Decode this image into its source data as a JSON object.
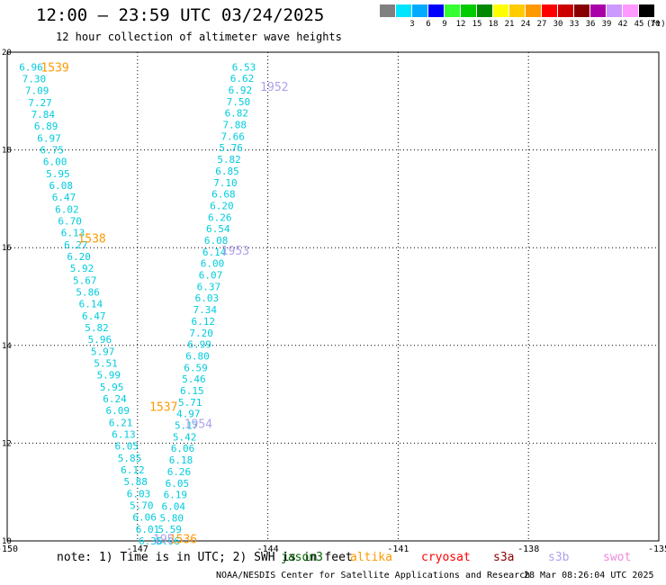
{
  "header": {
    "title": "12:00 — 23:59 UTC 03/24/2025",
    "subtitle": "12 hour collection of altimeter wave heights"
  },
  "colorscale": {
    "unit": "(ft)",
    "steps": [
      {
        "label": "",
        "color": "#808080"
      },
      {
        "label": "3",
        "color": "#00e5ff"
      },
      {
        "label": "6",
        "color": "#00aaff"
      },
      {
        "label": "9",
        "color": "#0000ff"
      },
      {
        "label": "12",
        "color": "#33ff33"
      },
      {
        "label": "15",
        "color": "#00cc00"
      },
      {
        "label": "18",
        "color": "#008800"
      },
      {
        "label": "21",
        "color": "#ffff00"
      },
      {
        "label": "24",
        "color": "#ffcc00"
      },
      {
        "label": "27",
        "color": "#ff9900"
      },
      {
        "label": "30",
        "color": "#ff0000"
      },
      {
        "label": "33",
        "color": "#cc0000"
      },
      {
        "label": "36",
        "color": "#880000"
      },
      {
        "label": "39",
        "color": "#aa00aa"
      },
      {
        "label": "42",
        "color": "#cc99ff"
      },
      {
        "label": "45",
        "color": "#ff99ff"
      },
      {
        "label": "70",
        "color": "#000000"
      }
    ]
  },
  "map": {
    "lon_ticks": [
      "-150",
      "-147",
      "-144",
      "-141",
      "-138",
      "-135"
    ],
    "lat_ticks": [
      "10",
      "12",
      "14",
      "16",
      "18",
      "20"
    ],
    "lon_range": [
      -150,
      -135
    ],
    "lat_range": [
      10,
      20
    ],
    "track_color": "#00ccdd",
    "tracks": [
      {
        "lon_start": -149.45,
        "lon_end": -146.7,
        "lat_start": 19.7,
        "lat_end": 10.0,
        "values": [
          "6.96",
          "7.30",
          "7.09",
          "7.27",
          "7.84",
          "6.89",
          "6.97",
          "6.75",
          "6.00",
          "5.95",
          "6.08",
          "6.47",
          "6.02",
          "6.70",
          "6.13",
          "6.27",
          "6.20",
          "5.92",
          "5.67",
          "5.86",
          "6.14",
          "6.47",
          "5.82",
          "5.96",
          "5.97",
          "5.51",
          "5.99",
          "5.95",
          "6.24",
          "6.09",
          "6.21",
          "6.13",
          "6.05",
          "5.85",
          "6.12",
          "5.88",
          "6.03",
          "5.70",
          "6.06",
          "6.01",
          "6.36"
        ]
      },
      {
        "lon_start": -144.55,
        "lon_end": -146.3,
        "lat_start": 19.7,
        "lat_end": 10.0,
        "values": [
          "6.53",
          "6.62",
          "6.92",
          "7.50",
          "6.82",
          "7.88",
          "7.66",
          "5.76",
          "5.82",
          "6.85",
          "7.10",
          "6.68",
          "6.20",
          "6.26",
          "6.54",
          "6.08",
          "6.14",
          "6.00",
          "6.07",
          "6.37",
          "6.03",
          "7.34",
          "6.12",
          "7.20",
          "6.99",
          "6.80",
          "6.59",
          "5.46",
          "6.15",
          "5.71",
          "4.97",
          "5.17",
          "5.42",
          "6.06",
          "6.18",
          "6.26",
          "6.05",
          "6.19",
          "6.04",
          "5.80",
          "5.59",
          "5.96"
        ]
      }
    ],
    "time_labels": [
      {
        "text": "1539",
        "lon": -148.9,
        "lat": 19.7,
        "color": "#ff9900"
      },
      {
        "text": "1538",
        "lon": -148.05,
        "lat": 16.2,
        "color": "#ff9900"
      },
      {
        "text": "1537",
        "lon": -146.4,
        "lat": 12.75,
        "color": "#ff9900"
      },
      {
        "text": "1536",
        "lon": -145.95,
        "lat": 10.05,
        "color": "#ff9900"
      },
      {
        "text": "1952",
        "lon": -143.85,
        "lat": 19.3,
        "color": "#b0a0ee"
      },
      {
        "text": "1953",
        "lon": -144.75,
        "lat": 15.95,
        "color": "#b0a0ee"
      },
      {
        "text": "1954",
        "lon": -145.6,
        "lat": 12.4,
        "color": "#b0a0ee"
      },
      {
        "text": "195",
        "lon": -146.4,
        "lat": 10.05,
        "color": "#b0a0ee"
      }
    ]
  },
  "note": "note: 1) Time is in UTC; 2) SWH is in feet",
  "legend": [
    {
      "label": "jason3",
      "color": "#006600"
    },
    {
      "label": "altika",
      "color": "#ff9900"
    },
    {
      "label": "cryosat",
      "color": "#ff0000"
    },
    {
      "label": "s3a",
      "color": "#880000"
    },
    {
      "label": "s3b",
      "color": "#b0a0ee"
    },
    {
      "label": "swot",
      "color": "#ee88dd"
    }
  ],
  "footer": {
    "credit": "NOAA/NESDIS Center for Satellite Applications and Research",
    "timestamp": "28 Mar 08:26:04 UTC 2025"
  }
}
